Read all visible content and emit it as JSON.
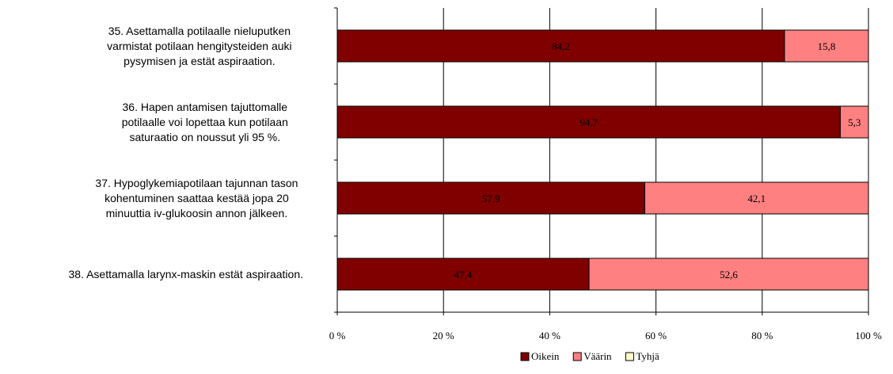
{
  "chart_data": {
    "type": "bar",
    "orientation": "horizontal",
    "stacked": true,
    "percent": true,
    "categories": [
      [
        "35. Asettamalla potilaalle nieluputken",
        "varmistat potilaan hengitysteiden auki",
        "pysymisen ja estät aspiraation."
      ],
      [
        "36. Hapen antamisen tajuttomalle",
        "potilaalle voi lopettaa kun potilaan",
        "saturaatio on noussut yli 95 %."
      ],
      [
        "37. Hypoglykemiapotilaan tajunnan tason",
        "kohentuminen saattaa kestää jopa 20",
        "minuuttia iv-glukoosin annon jälkeen."
      ],
      [
        "38. Asettamalla larynx-maskin estät aspiraation."
      ]
    ],
    "series": [
      {
        "name": "Oikein",
        "color": "#800000",
        "values": [
          84.2,
          94.7,
          57.9,
          47.4
        ],
        "labels": [
          "84,2",
          "94,7",
          "57,9",
          "47,4"
        ]
      },
      {
        "name": "Väärin",
        "color": "#FF8080",
        "values": [
          15.8,
          5.3,
          42.1,
          52.6
        ],
        "labels": [
          "15,8",
          "5,3",
          "42,1",
          "52,6"
        ]
      },
      {
        "name": "Tyhjä",
        "color": "#FFFFCC",
        "values": [
          0,
          0,
          0,
          0
        ],
        "labels": [
          "",
          "",
          "",
          ""
        ]
      }
    ],
    "xlim": [
      0,
      100
    ],
    "xticks": [
      "0 %",
      "20 %",
      "40 %",
      "60 %",
      "80 %",
      "100 %"
    ],
    "grid": true,
    "legend_position": "bottom"
  }
}
